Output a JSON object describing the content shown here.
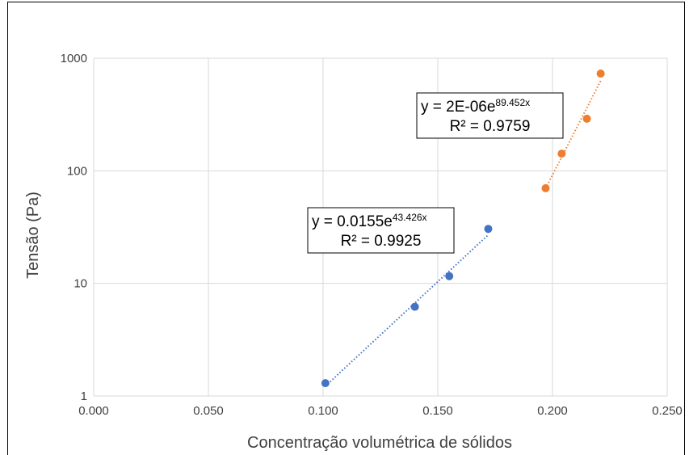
{
  "chart_data": {
    "type": "scatter",
    "title": "",
    "xlabel": "Concentração volumétrica de sólidos",
    "ylabel": "Tensão (Pa)",
    "xlim": [
      0.0,
      0.25
    ],
    "ylim": [
      1,
      1000
    ],
    "yscale": "log",
    "grid": true,
    "legend": "none",
    "x_ticks": [
      "0.000",
      "0.050",
      "0.100",
      "0.150",
      "0.200",
      "0.250"
    ],
    "y_ticks": [
      "1",
      "10",
      "100",
      "1000"
    ],
    "series": [
      {
        "color": "#4472c4",
        "x": [
          0.101,
          0.14,
          0.155,
          0.172
        ],
        "y": [
          1.3,
          6.2,
          11.6,
          30.5
        ],
        "trendline": {
          "type": "exponential",
          "equation_base": "y = 0.0155e",
          "equation_exp": "43.426x",
          "r2_label": "R² = 0.9925"
        }
      },
      {
        "color": "#ed7d31",
        "x": [
          0.197,
          0.204,
          0.215,
          0.221
        ],
        "y": [
          70,
          142,
          290,
          730
        ],
        "trendline": {
          "type": "exponential",
          "equation_base": "y = 2E-06e",
          "equation_exp": "89.452x",
          "r2_label": "R² = 0.9759"
        }
      }
    ]
  }
}
